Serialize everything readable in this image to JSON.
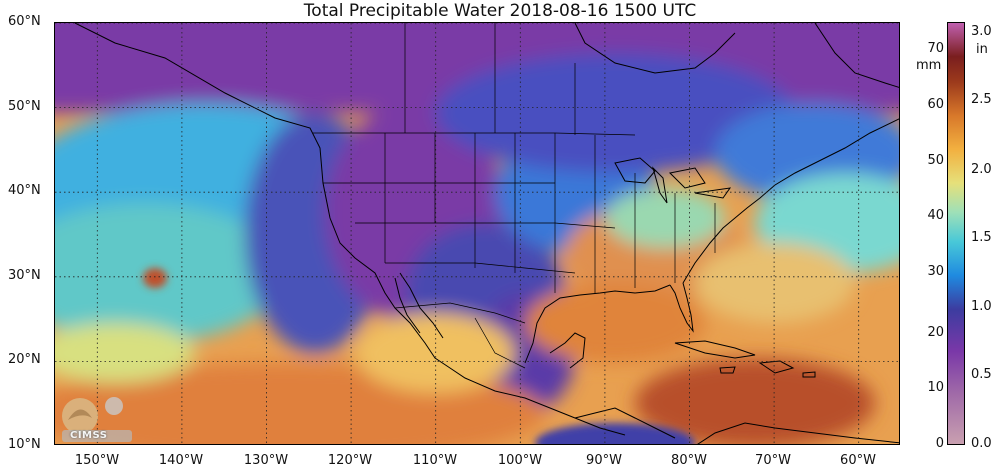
{
  "title": "Total Precipitable Water  2018-08-16 1500 UTC",
  "map": {
    "lat_labels": [
      "60°N",
      "50°N",
      "40°N",
      "30°N",
      "20°N",
      "10°N"
    ],
    "lon_labels": [
      "150°W",
      "140°W",
      "130°W",
      "120°W",
      "110°W",
      "100°W",
      "90°W",
      "80°W",
      "70°W",
      "60°W"
    ],
    "lat_range": [
      10,
      60
    ],
    "lon_range": [
      -155,
      -55
    ],
    "grid": "dotted",
    "logo_text": "CIMSS"
  },
  "colorbar": {
    "mm_unit": "mm",
    "in_unit": "in",
    "mm_ticks": [
      "70",
      "60",
      "50",
      "40",
      "30",
      "20",
      "10",
      "0"
    ],
    "in_ticks": [
      "3.0",
      "2.5",
      "2.0",
      "1.5",
      "1.0",
      "0.5",
      "0.0"
    ],
    "mm_range": [
      0,
      76
    ],
    "in_range": [
      0.0,
      3.0
    ]
  }
}
